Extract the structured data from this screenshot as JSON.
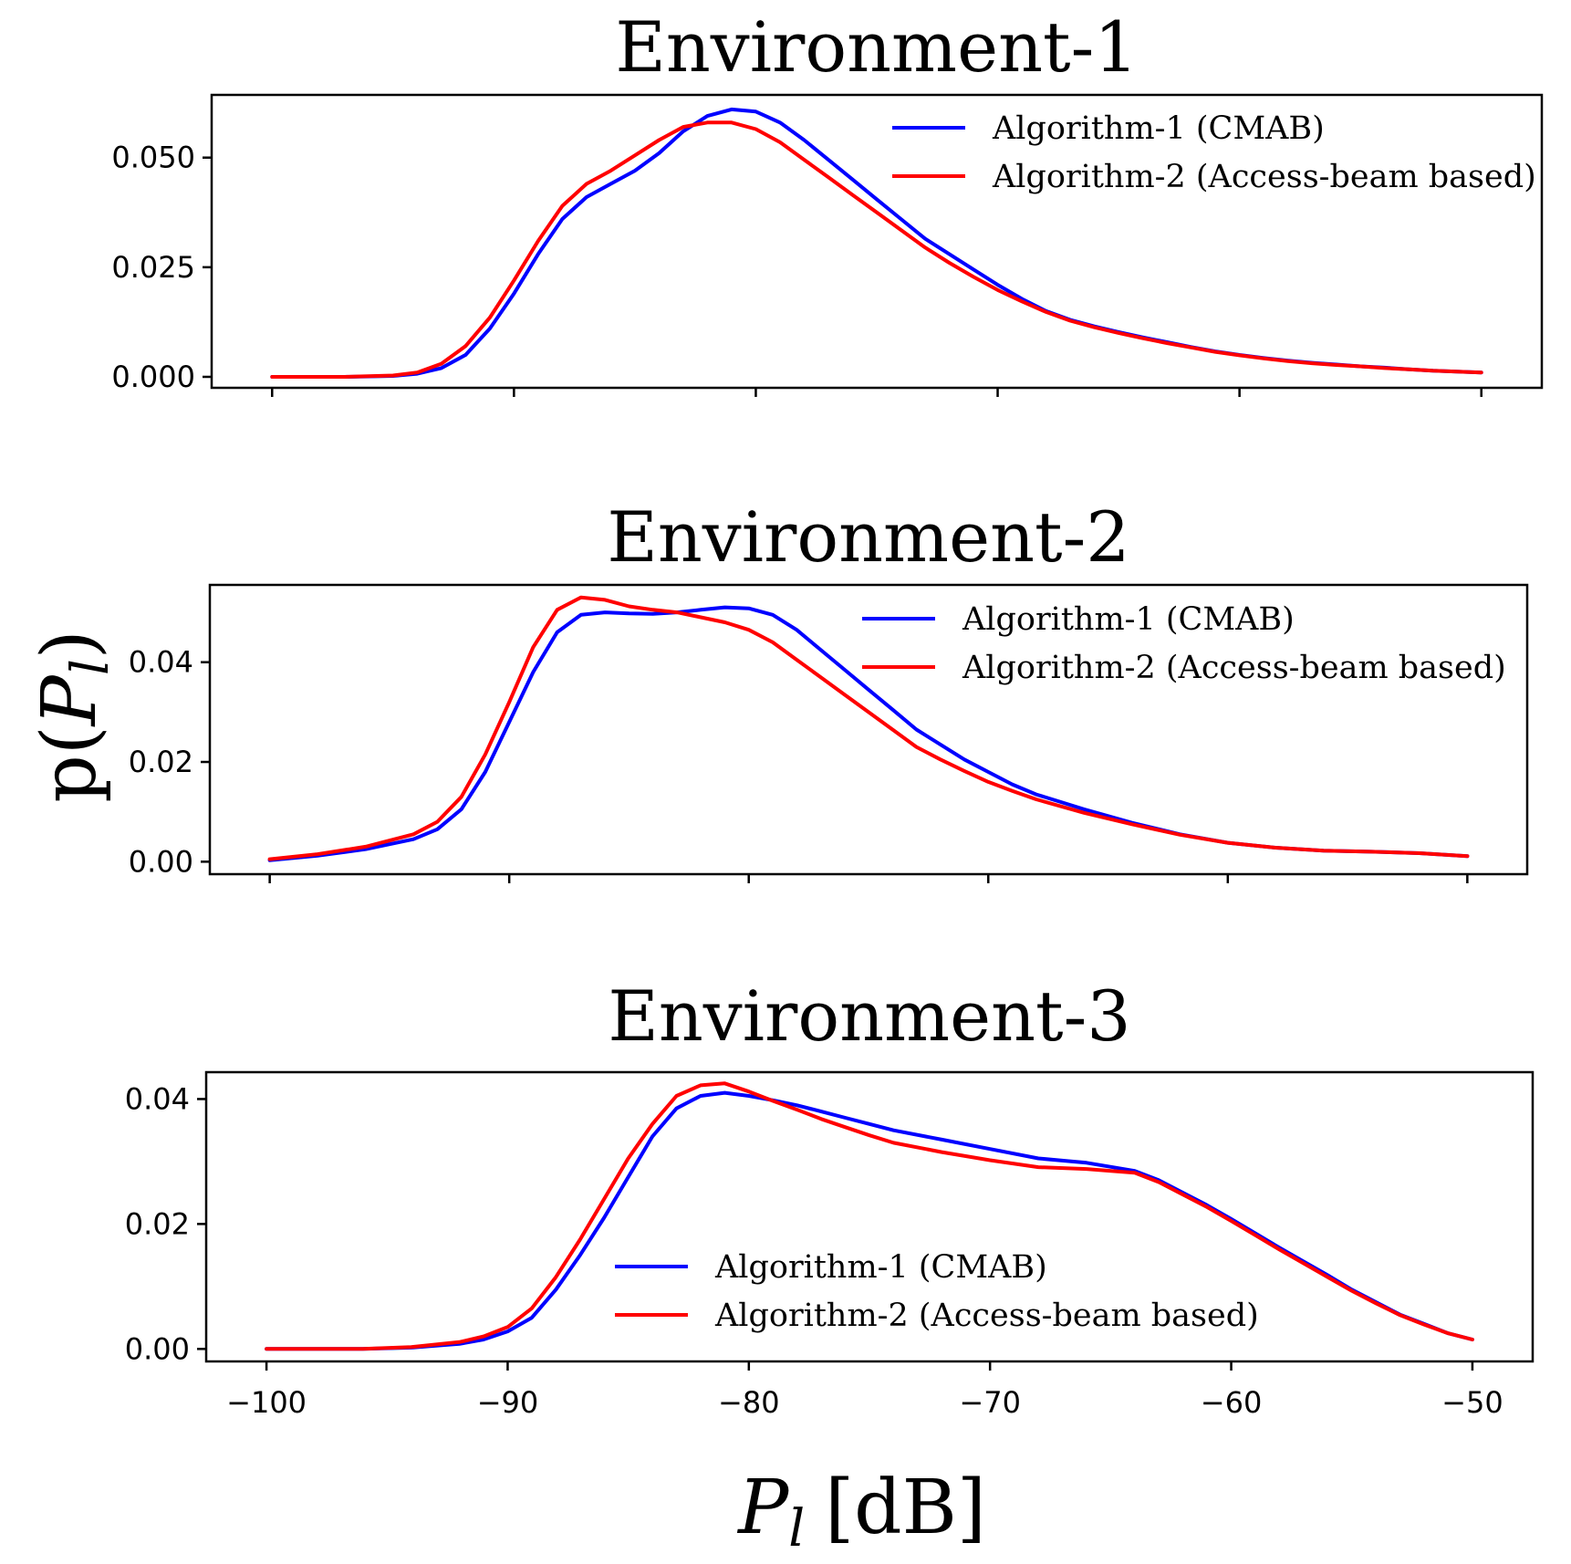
{
  "figure": {
    "xlabel_main": "P",
    "xlabel_sub": "l",
    "xlabel_unit": "[dB]",
    "ylabel_prefix": "p(",
    "ylabel_main": "P",
    "ylabel_sub": "l",
    "ylabel_suffix": ")"
  },
  "colors": {
    "algorithm_1": "#0000ff",
    "algorithm_2": "#ff0000"
  },
  "chart_data": [
    {
      "type": "line",
      "title": "Environment-1",
      "xlim": [
        -102.5,
        -47.5
      ],
      "ylim": [
        -0.0025,
        0.0643
      ],
      "xticks": [
        -100,
        -90,
        -80,
        -70,
        -60,
        -50
      ],
      "xtick_labels_visible": false,
      "yticks": [
        0.0,
        0.025,
        0.05
      ],
      "ytick_labels": [
        "0.000",
        "0.025",
        "0.050"
      ],
      "legend_position": "top-right",
      "series": [
        {
          "name": "Algorithm-1 (CMAB)",
          "color": "#0000ff",
          "x": [
            -100,
            -97,
            -95,
            -94,
            -93,
            -92,
            -91,
            -90,
            -89,
            -88,
            -87,
            -86,
            -85,
            -84,
            -83,
            -82,
            -81,
            -80,
            -79,
            -78,
            -77,
            -76,
            -75,
            -74,
            -73,
            -72,
            -71,
            -70,
            -69,
            -68,
            -67,
            -66,
            -65,
            -64,
            -63,
            -62,
            -61,
            -60,
            -59,
            -58,
            -57,
            -56,
            -55,
            -54,
            -53,
            -52,
            -51,
            -50
          ],
          "y": [
            0.0,
            0.0,
            0.0002,
            0.0007,
            0.002,
            0.005,
            0.011,
            0.019,
            0.028,
            0.036,
            0.041,
            0.044,
            0.047,
            0.051,
            0.056,
            0.0595,
            0.061,
            0.0605,
            0.058,
            0.054,
            0.0495,
            0.045,
            0.0405,
            0.036,
            0.0315,
            0.028,
            0.0245,
            0.021,
            0.0178,
            0.015,
            0.013,
            0.0115,
            0.0102,
            0.009,
            0.0079,
            0.0068,
            0.0058,
            0.005,
            0.0043,
            0.0037,
            0.0032,
            0.0028,
            0.0024,
            0.0021,
            0.0017,
            0.0014,
            0.0012,
            0.001
          ]
        },
        {
          "name": "Algorithm-2 (Access-beam based)",
          "color": "#ff0000",
          "x": [
            -100,
            -97,
            -95,
            -94,
            -93,
            -92,
            -91,
            -90,
            -89,
            -88,
            -87,
            -86,
            -85,
            -84,
            -83,
            -82,
            -81,
            -80,
            -79,
            -78,
            -77,
            -76,
            -75,
            -74,
            -73,
            -72,
            -71,
            -70,
            -69,
            -68,
            -67,
            -66,
            -65,
            -64,
            -63,
            -62,
            -61,
            -60,
            -59,
            -58,
            -57,
            -56,
            -55,
            -54,
            -53,
            -52,
            -51,
            -50
          ],
          "y": [
            0.0,
            0.0,
            0.0003,
            0.001,
            0.003,
            0.007,
            0.0135,
            0.022,
            0.031,
            0.039,
            0.044,
            0.047,
            0.0505,
            0.054,
            0.057,
            0.058,
            0.058,
            0.0565,
            0.0535,
            0.0495,
            0.0455,
            0.0415,
            0.0375,
            0.0335,
            0.0295,
            0.026,
            0.0228,
            0.0198,
            0.0172,
            0.0148,
            0.0128,
            0.0113,
            0.01,
            0.0088,
            0.0077,
            0.0067,
            0.0057,
            0.0049,
            0.0042,
            0.0036,
            0.0031,
            0.0027,
            0.0024,
            0.002,
            0.0017,
            0.0014,
            0.0012,
            0.001
          ]
        }
      ]
    },
    {
      "type": "line",
      "title": "Environment-2",
      "xlim": [
        -102.5,
        -47.5
      ],
      "ylim": [
        -0.0025,
        0.0555
      ],
      "xticks": [
        -100,
        -90,
        -80,
        -70,
        -60,
        -50
      ],
      "xtick_labels_visible": false,
      "yticks": [
        0.0,
        0.02,
        0.04
      ],
      "ytick_labels": [
        "0.00",
        "0.02",
        "0.04"
      ],
      "legend_position": "top-right",
      "series": [
        {
          "name": "Algorithm-1 (CMAB)",
          "color": "#0000ff",
          "x": [
            -100,
            -98,
            -96,
            -94,
            -93,
            -92,
            -91,
            -90,
            -89,
            -88,
            -87,
            -86,
            -85,
            -84,
            -83,
            -82,
            -81,
            -80,
            -79,
            -78,
            -77,
            -76,
            -75,
            -74,
            -73,
            -72,
            -71,
            -70,
            -69,
            -68,
            -66,
            -64,
            -62,
            -60,
            -58,
            -56,
            -54,
            -52,
            -50
          ],
          "y": [
            0.0003,
            0.0012,
            0.0025,
            0.0045,
            0.0065,
            0.0105,
            0.018,
            0.028,
            0.038,
            0.046,
            0.0495,
            0.05,
            0.0498,
            0.0497,
            0.05,
            0.0505,
            0.051,
            0.0508,
            0.0495,
            0.0465,
            0.0425,
            0.0385,
            0.0345,
            0.0305,
            0.0265,
            0.0235,
            0.0205,
            0.018,
            0.0155,
            0.0135,
            0.0105,
            0.0078,
            0.0055,
            0.0038,
            0.0028,
            0.0022,
            0.002,
            0.0017,
            0.0011
          ]
        },
        {
          "name": "Algorithm-2 (Access-beam based)",
          "color": "#ff0000",
          "x": [
            -100,
            -98,
            -96,
            -94,
            -93,
            -92,
            -91,
            -90,
            -89,
            -88,
            -87,
            -86,
            -85,
            -84,
            -83,
            -82,
            -81,
            -80,
            -79,
            -78,
            -77,
            -76,
            -75,
            -74,
            -73,
            -72,
            -71,
            -70,
            -69,
            -68,
            -66,
            -64,
            -62,
            -60,
            -58,
            -56,
            -54,
            -52,
            -50
          ],
          "y": [
            0.0005,
            0.0015,
            0.003,
            0.0055,
            0.008,
            0.013,
            0.0215,
            0.032,
            0.043,
            0.0505,
            0.053,
            0.0525,
            0.0512,
            0.0505,
            0.05,
            0.049,
            0.048,
            0.0465,
            0.044,
            0.0405,
            0.037,
            0.0335,
            0.03,
            0.0265,
            0.023,
            0.0205,
            0.0182,
            0.016,
            0.0142,
            0.0125,
            0.0098,
            0.0075,
            0.0054,
            0.0038,
            0.0028,
            0.0022,
            0.002,
            0.0017,
            0.0011
          ]
        }
      ]
    },
    {
      "type": "line",
      "title": "Environment-3",
      "xlim": [
        -102.5,
        -47.5
      ],
      "ylim": [
        -0.002,
        0.0443
      ],
      "xticks": [
        -100,
        -90,
        -80,
        -70,
        -60,
        -50
      ],
      "xtick_labels": [
        "−100",
        "−90",
        "−80",
        "−70",
        "−60",
        "−50"
      ],
      "xtick_labels_visible": true,
      "yticks": [
        0.0,
        0.02,
        0.04
      ],
      "ytick_labels": [
        "0.00",
        "0.02",
        "0.04"
      ],
      "legend_position": "bottom-center",
      "series": [
        {
          "name": "Algorithm-1 (CMAB)",
          "color": "#0000ff",
          "x": [
            -100,
            -96,
            -94,
            -92,
            -91,
            -90,
            -89,
            -88,
            -87,
            -86,
            -85,
            -84,
            -83,
            -82,
            -81,
            -80,
            -79,
            -78,
            -77,
            -76,
            -75,
            -74,
            -72,
            -70,
            -68,
            -66,
            -64,
            -63,
            -62,
            -61,
            -60,
            -59,
            -58,
            -57,
            -56,
            -55,
            -54,
            -53,
            -52,
            -51,
            -50
          ],
          "y": [
            0.0,
            0.0,
            0.0002,
            0.0008,
            0.0015,
            0.0028,
            0.005,
            0.0095,
            0.015,
            0.021,
            0.0275,
            0.034,
            0.0385,
            0.0405,
            0.041,
            0.0405,
            0.0398,
            0.039,
            0.038,
            0.037,
            0.036,
            0.035,
            0.0335,
            0.032,
            0.0305,
            0.0298,
            0.0285,
            0.027,
            0.025,
            0.023,
            0.0208,
            0.0185,
            0.0162,
            0.014,
            0.0118,
            0.0095,
            0.0075,
            0.0055,
            0.004,
            0.0025,
            0.0015
          ]
        },
        {
          "name": "Algorithm-2 (Access-beam based)",
          "color": "#ff0000",
          "x": [
            -100,
            -96,
            -94,
            -92,
            -91,
            -90,
            -89,
            -88,
            -87,
            -86,
            -85,
            -84,
            -83,
            -82,
            -81,
            -80,
            -79,
            -78,
            -77,
            -76,
            -75,
            -74,
            -72,
            -70,
            -68,
            -66,
            -64,
            -63,
            -62,
            -61,
            -60,
            -59,
            -58,
            -57,
            -56,
            -55,
            -54,
            -53,
            -52,
            -51,
            -50
          ],
          "y": [
            0.0,
            0.0,
            0.0003,
            0.0011,
            0.002,
            0.0035,
            0.0065,
            0.0115,
            0.0175,
            0.024,
            0.0305,
            0.036,
            0.0405,
            0.0422,
            0.0425,
            0.0412,
            0.0397,
            0.0383,
            0.0368,
            0.0355,
            0.0342,
            0.033,
            0.0315,
            0.0302,
            0.0291,
            0.0288,
            0.0282,
            0.0267,
            0.0247,
            0.0227,
            0.0205,
            0.0182,
            0.0159,
            0.0137,
            0.0115,
            0.0093,
            0.0073,
            0.0054,
            0.0039,
            0.0025,
            0.0015
          ]
        }
      ]
    }
  ]
}
